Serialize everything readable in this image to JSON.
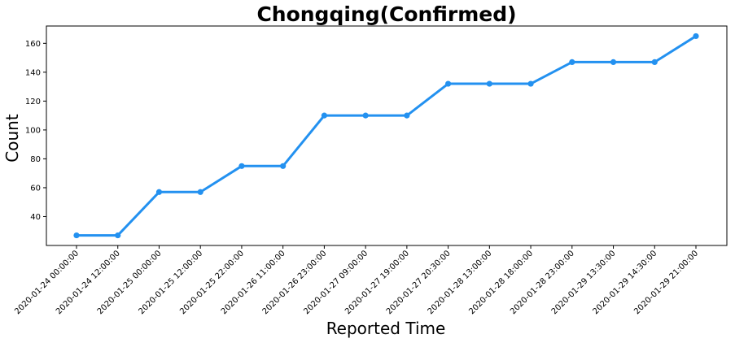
{
  "chart_data": {
    "type": "line",
    "title": "Chongqing(Confirmed)",
    "xlabel": "Reported Time",
    "ylabel": "Count",
    "categories": [
      "2020-01-24 00:00:00",
      "2020-01-24 12:00:00",
      "2020-01-25 00:00:00",
      "2020-01-25 12:00:00",
      "2020-01-25 22:00:00",
      "2020-01-26 11:00:00",
      "2020-01-26 23:00:00",
      "2020-01-27 09:00:00",
      "2020-01-27 19:00:00",
      "2020-01-27 20:30:00",
      "2020-01-28 13:00:00",
      "2020-01-28 18:00:00",
      "2020-01-28 23:00:00",
      "2020-01-29 13:30:00",
      "2020-01-29 14:30:00",
      "2020-01-29 21:00:00"
    ],
    "series": [
      {
        "values": [
          27,
          27,
          57,
          57,
          75,
          75,
          110,
          110,
          110,
          132,
          132,
          132,
          147,
          147,
          147,
          165
        ]
      }
    ],
    "ylim": [
      20,
      172
    ],
    "yticks": [
      40,
      60,
      80,
      100,
      120,
      140,
      160
    ],
    "grid": false,
    "line_color": "#2391f0"
  }
}
